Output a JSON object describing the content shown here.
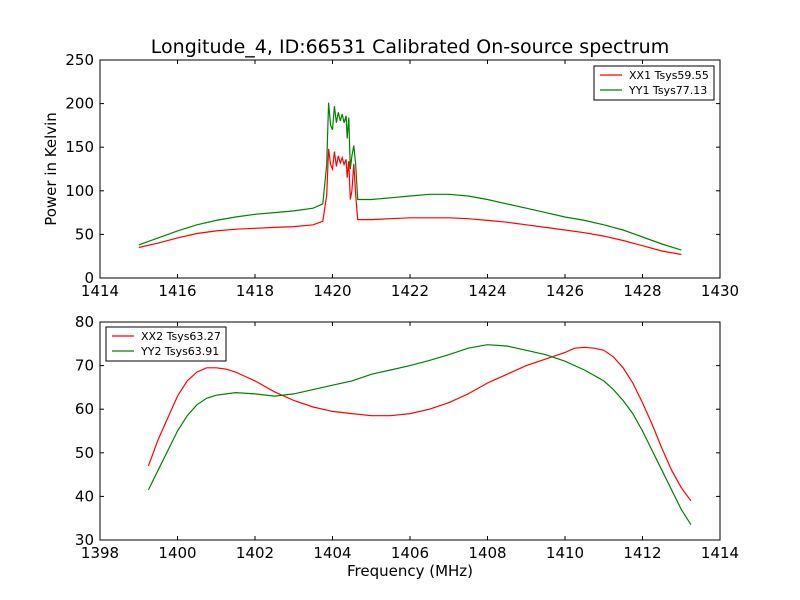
{
  "figure": {
    "title": "Longitude_4, ID:66531 Calibrated On-source spectrum"
  },
  "chart_data": [
    {
      "type": "line",
      "title": "Longitude_4, ID:66531 Calibrated On-source spectrum",
      "xlabel": "",
      "ylabel": "Power in Kelvin",
      "xlim": [
        1414,
        1430
      ],
      "ylim": [
        0,
        250
      ],
      "xticks": [
        "1414",
        "1416",
        "1418",
        "1420",
        "1422",
        "1424",
        "1426",
        "1428",
        "1430"
      ],
      "yticks": [
        "0",
        "50",
        "100",
        "150",
        "200",
        "250"
      ],
      "grid": false,
      "legend": "top-right",
      "series": [
        {
          "name": "XX1 Tsys59.55",
          "color": "#ff0000",
          "x": [
            1415.0,
            1415.5,
            1416.0,
            1416.5,
            1417.0,
            1417.5,
            1418.0,
            1418.5,
            1419.0,
            1419.5,
            1419.75,
            1419.85,
            1419.9,
            1419.95,
            1420.0,
            1420.05,
            1420.1,
            1420.15,
            1420.2,
            1420.25,
            1420.3,
            1420.35,
            1420.38,
            1420.42,
            1420.46,
            1420.5,
            1420.55,
            1420.6,
            1420.65,
            1421.0,
            1421.5,
            1422.0,
            1422.5,
            1423.0,
            1423.5,
            1424.0,
            1424.5,
            1425.0,
            1425.5,
            1426.0,
            1426.5,
            1427.0,
            1427.5,
            1428.0,
            1428.5,
            1429.0
          ],
          "y": [
            35,
            40,
            46,
            51,
            54,
            56,
            57,
            58,
            59,
            61,
            65,
            95,
            148,
            130,
            125,
            145,
            128,
            140,
            132,
            138,
            130,
            136,
            115,
            134,
            90,
            100,
            131,
            95,
            67,
            67,
            68,
            69,
            69,
            69,
            68,
            66,
            64,
            61,
            58,
            55,
            52,
            48,
            43,
            37,
            31,
            27
          ]
        },
        {
          "name": "YY1 Tsys77.13",
          "color": "#008000",
          "x": [
            1415.0,
            1415.5,
            1416.0,
            1416.5,
            1417.0,
            1417.5,
            1418.0,
            1418.5,
            1419.0,
            1419.5,
            1419.75,
            1419.85,
            1419.9,
            1419.95,
            1420.0,
            1420.05,
            1420.1,
            1420.15,
            1420.2,
            1420.25,
            1420.3,
            1420.35,
            1420.38,
            1420.42,
            1420.46,
            1420.5,
            1420.55,
            1420.6,
            1420.65,
            1421.0,
            1421.5,
            1422.0,
            1422.5,
            1423.0,
            1423.5,
            1424.0,
            1424.5,
            1425.0,
            1425.5,
            1426.0,
            1426.5,
            1427.0,
            1427.5,
            1428.0,
            1428.5,
            1429.0
          ],
          "y": [
            38,
            46,
            54,
            61,
            66,
            70,
            73,
            75,
            77,
            80,
            85,
            130,
            201,
            175,
            170,
            197,
            178,
            190,
            180,
            188,
            178,
            186,
            160,
            184,
            125,
            140,
            152,
            130,
            90,
            90,
            92,
            94,
            96,
            96,
            94,
            90,
            85,
            80,
            75,
            70,
            66,
            61,
            55,
            47,
            39,
            32
          ]
        }
      ]
    },
    {
      "type": "line",
      "title": "",
      "xlabel": "Frequency (MHz)",
      "ylabel": "",
      "xlim": [
        1398,
        1414
      ],
      "ylim": [
        30,
        80
      ],
      "xticks": [
        "1398",
        "1400",
        "1402",
        "1404",
        "1406",
        "1408",
        "1410",
        "1412",
        "1414"
      ],
      "yticks": [
        "30",
        "40",
        "50",
        "60",
        "70",
        "80"
      ],
      "grid": false,
      "legend": "top-left",
      "series": [
        {
          "name": "XX2 Tsys63.27",
          "color": "#ff0000",
          "x": [
            1399.25,
            1399.5,
            1399.75,
            1400.0,
            1400.25,
            1400.5,
            1400.75,
            1401.0,
            1401.25,
            1401.5,
            1401.75,
            1402.0,
            1402.5,
            1403.0,
            1403.5,
            1404.0,
            1404.5,
            1405.0,
            1405.5,
            1406.0,
            1406.5,
            1407.0,
            1407.5,
            1408.0,
            1408.5,
            1409.0,
            1409.5,
            1410.0,
            1410.25,
            1410.5,
            1410.75,
            1411.0,
            1411.25,
            1411.5,
            1411.75,
            1412.0,
            1412.25,
            1412.5,
            1412.75,
            1413.0,
            1413.25
          ],
          "y": [
            47,
            53,
            58,
            63,
            66.5,
            68.5,
            69.5,
            69.5,
            69.2,
            68.5,
            67.5,
            66.5,
            64,
            62,
            60.5,
            59.5,
            59,
            58.5,
            58.5,
            59,
            60,
            61.5,
            63.5,
            66,
            68,
            70,
            71.5,
            73,
            74,
            74.2,
            74,
            73.5,
            72,
            69.5,
            66,
            61.5,
            56.5,
            51,
            46,
            42,
            39
          ]
        },
        {
          "name": "YY2 Tsys63.91",
          "color": "#008000",
          "x": [
            1399.25,
            1399.5,
            1399.75,
            1400.0,
            1400.25,
            1400.5,
            1400.75,
            1401.0,
            1401.5,
            1402.0,
            1402.5,
            1403.0,
            1403.5,
            1404.0,
            1404.5,
            1405.0,
            1405.5,
            1406.0,
            1406.5,
            1407.0,
            1407.5,
            1408.0,
            1408.5,
            1409.0,
            1409.5,
            1410.0,
            1410.5,
            1411.0,
            1411.25,
            1411.5,
            1411.75,
            1412.0,
            1412.25,
            1412.5,
            1412.75,
            1413.0,
            1413.25
          ],
          "y": [
            41.5,
            46,
            50.5,
            55,
            58.5,
            61,
            62.5,
            63.2,
            63.8,
            63.5,
            63,
            63.5,
            64.5,
            65.5,
            66.5,
            68,
            69,
            70,
            71.2,
            72.5,
            74,
            74.8,
            74.5,
            73.5,
            72.5,
            71,
            69,
            66.5,
            64.5,
            62,
            59,
            55,
            50.5,
            46,
            41.5,
            37,
            33.5
          ]
        }
      ]
    }
  ]
}
